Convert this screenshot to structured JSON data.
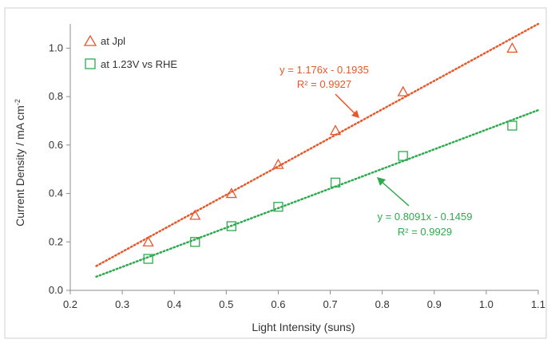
{
  "chart_data": {
    "type": "scatter",
    "xlabel": "Light Intensity (suns)",
    "ylabel": "Current Density / mA cm",
    "ylabel_sup": "-2",
    "xlim": [
      0.2,
      1.1
    ],
    "ylim": [
      0.0,
      1.1
    ],
    "xticks": [
      "0.2",
      "0.3",
      "0.4",
      "0.5",
      "0.6",
      "0.7",
      "0.8",
      "0.9",
      "1.0",
      "1.1"
    ],
    "yticks": [
      "0.0",
      "0.2",
      "0.4",
      "0.6",
      "0.8",
      "1.0"
    ],
    "grid": false,
    "legend_position": "top-left",
    "series": [
      {
        "name": "at Jpl",
        "marker": "triangle",
        "color": "#E8572A",
        "x": [
          0.35,
          0.44,
          0.51,
          0.6,
          0.71,
          0.84,
          1.05
        ],
        "y": [
          0.2,
          0.31,
          0.4,
          0.52,
          0.66,
          0.82,
          1.0
        ],
        "trendline": {
          "slope": 1.176,
          "intercept": -0.1935,
          "x_range": [
            0.25,
            1.1
          ],
          "equation": "y = 1.176x - 0.1935",
          "r2": "R² = 0.9927"
        }
      },
      {
        "name": "at 1.23V vs RHE",
        "marker": "square",
        "color": "#2EAA4E",
        "x": [
          0.35,
          0.44,
          0.51,
          0.6,
          0.71,
          0.84,
          1.05
        ],
        "y": [
          0.13,
          0.2,
          0.265,
          0.345,
          0.445,
          0.555,
          0.68
        ],
        "trendline": {
          "slope": 0.8091,
          "intercept": -0.1459,
          "x_range": [
            0.25,
            1.1
          ],
          "equation": "y = 0.8091x - 0.1459",
          "r2": "R² = 0.9929"
        }
      }
    ]
  }
}
